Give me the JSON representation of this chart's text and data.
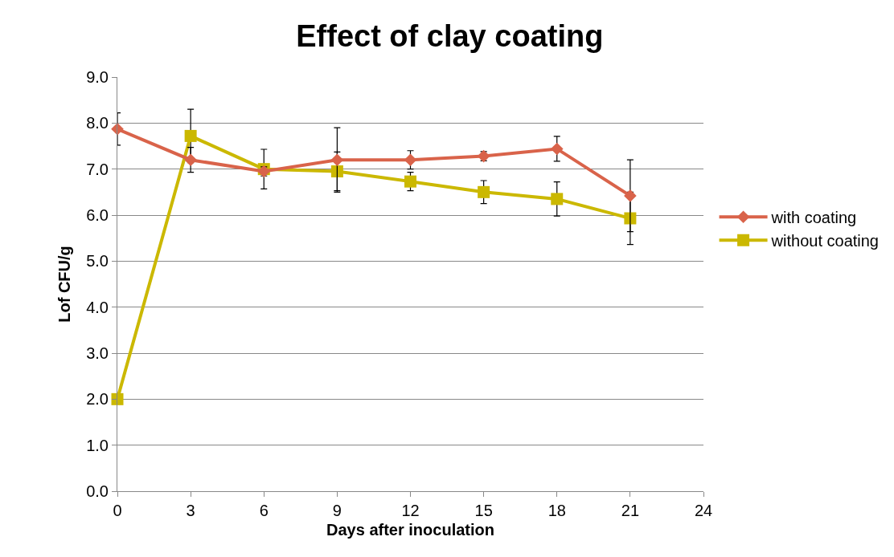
{
  "chart_data": {
    "type": "line",
    "title": "Effect of clay coating",
    "xlabel": "Days after inoculation",
    "ylabel": "Lof CFU/g",
    "x": [
      0,
      3,
      6,
      9,
      12,
      15,
      18,
      21
    ],
    "series": [
      {
        "name": "with coating",
        "color": "#d9634a",
        "marker": "diamond",
        "values": [
          7.87,
          7.2,
          6.95,
          7.2,
          7.2,
          7.28,
          7.44,
          6.42
        ],
        "errors": [
          0.35,
          0.27,
          0.1,
          0.7,
          0.2,
          0.1,
          0.27,
          0.78
        ]
      },
      {
        "name": "without coating",
        "color": "#cbb800",
        "marker": "square",
        "values": [
          2.0,
          7.72,
          7.0,
          6.95,
          6.73,
          6.5,
          6.35,
          5.93
        ],
        "errors": [
          null,
          0.58,
          0.43,
          0.42,
          0.2,
          0.25,
          0.37,
          0.57
        ]
      }
    ],
    "xlim": [
      0,
      24
    ],
    "xticks": [
      0,
      3,
      6,
      9,
      12,
      15,
      18,
      21,
      24
    ],
    "ylim": [
      0,
      9
    ],
    "yticks": [
      {
        "value": 0,
        "label": "0.0"
      },
      {
        "value": 1,
        "label": "1.0"
      },
      {
        "value": 2,
        "label": "2.0"
      },
      {
        "value": 3,
        "label": "3.0"
      },
      {
        "value": 4,
        "label": "4.0"
      },
      {
        "value": 5,
        "label": "5.0"
      },
      {
        "value": 6,
        "label": "6.0"
      },
      {
        "value": 7,
        "label": "7.0"
      },
      {
        "value": 8,
        "label": "8.0"
      },
      {
        "value": 9,
        "label": "9.0"
      }
    ],
    "grid": "y",
    "legend": "right",
    "line_style": "solid"
  }
}
